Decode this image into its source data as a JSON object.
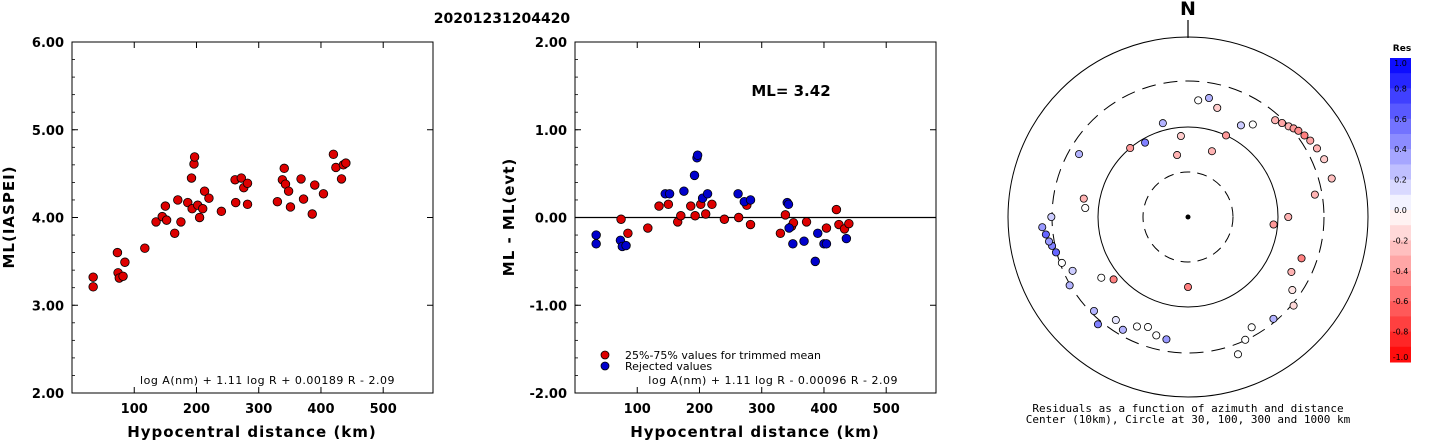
{
  "event_title": "20201231204420",
  "chart_data": [
    {
      "type": "scatter",
      "xlabel": "Hypocentral distance (km)",
      "ylabel": "ML(IASPEI)",
      "xlim": [
        0,
        580
      ],
      "ylim": [
        2.0,
        6.0
      ],
      "x_ticks": [
        "100",
        "200",
        "300",
        "400",
        "500"
      ],
      "y_ticks": [
        "2.00",
        "3.00",
        "4.00",
        "5.00",
        "6.00"
      ],
      "formula": "log A(nm) + 1.11 log R + 0.00189 R - 2.09",
      "series": [
        {
          "color": "#dd0000",
          "points": [
            [
              34,
              3.32
            ],
            [
              34,
              3.21
            ],
            [
              73,
              3.6
            ],
            [
              74,
              3.37
            ],
            [
              76,
              3.31
            ],
            [
              82,
              3.33
            ],
            [
              85,
              3.49
            ],
            [
              117,
              3.65
            ],
            [
              135,
              3.95
            ],
            [
              145,
              4.01
            ],
            [
              150,
              4.13
            ],
            [
              152,
              3.97
            ],
            [
              165,
              3.82
            ],
            [
              170,
              4.2
            ],
            [
              175,
              3.95
            ],
            [
              186,
              4.17
            ],
            [
              192,
              4.45
            ],
            [
              193,
              4.1
            ],
            [
              196,
              4.61
            ],
            [
              197,
              4.69
            ],
            [
              202,
              4.14
            ],
            [
              205,
              4.0
            ],
            [
              210,
              4.1
            ],
            [
              213,
              4.3
            ],
            [
              220,
              4.22
            ],
            [
              240,
              4.07
            ],
            [
              262,
              4.43
            ],
            [
              263,
              4.17
            ],
            [
              272,
              4.45
            ],
            [
              276,
              4.34
            ],
            [
              282,
              4.39
            ],
            [
              282,
              4.15
            ],
            [
              330,
              4.18
            ],
            [
              338,
              4.43
            ],
            [
              341,
              4.56
            ],
            [
              343,
              4.38
            ],
            [
              348,
              4.3
            ],
            [
              351,
              4.12
            ],
            [
              368,
              4.44
            ],
            [
              372,
              4.21
            ],
            [
              386,
              4.04
            ],
            [
              390,
              4.37
            ],
            [
              404,
              4.27
            ],
            [
              420,
              4.72
            ],
            [
              424,
              4.57
            ],
            [
              433,
              4.44
            ],
            [
              436,
              4.6
            ],
            [
              440,
              4.62
            ]
          ]
        }
      ]
    },
    {
      "type": "scatter",
      "xlabel": "Hypocentral distance (km)",
      "ylabel": "ML - ML(evt)",
      "xlim": [
        0,
        580
      ],
      "ylim": [
        -2.0,
        2.0
      ],
      "x_ticks": [
        "100",
        "200",
        "300",
        "400",
        "500"
      ],
      "y_ticks": [
        "-2.00",
        "-1.00",
        "0.00",
        "1.00",
        "2.00"
      ],
      "annotation": "ML= 3.42",
      "formula": "log A(nm) + 1.11 log R - 0.00096 R - 2.09",
      "legend": [
        "25%-75% values for trimmed mean",
        "Rejected values"
      ],
      "series": [
        {
          "name": "25%-75% values for trimmed mean",
          "color": "#dd0000",
          "points": [
            [
              74,
              -0.02
            ],
            [
              85,
              -0.18
            ],
            [
              117,
              -0.12
            ],
            [
              135,
              0.13
            ],
            [
              150,
              0.15
            ],
            [
              165,
              -0.05
            ],
            [
              170,
              0.02
            ],
            [
              186,
              0.13
            ],
            [
              193,
              0.02
            ],
            [
              202,
              0.15
            ],
            [
              210,
              0.04
            ],
            [
              220,
              0.15
            ],
            [
              240,
              -0.02
            ],
            [
              263,
              0.0
            ],
            [
              276,
              0.14
            ],
            [
              282,
              -0.08
            ],
            [
              330,
              -0.18
            ],
            [
              338,
              0.03
            ],
            [
              348,
              -0.1
            ],
            [
              351,
              -0.06
            ],
            [
              372,
              -0.05
            ],
            [
              404,
              -0.12
            ],
            [
              420,
              0.09
            ],
            [
              424,
              -0.08
            ],
            [
              433,
              -0.13
            ],
            [
              440,
              -0.07
            ]
          ]
        },
        {
          "name": "Rejected values",
          "color": "#0000cc",
          "points": [
            [
              34,
              -0.2
            ],
            [
              34,
              -0.3
            ],
            [
              73,
              -0.26
            ],
            [
              76,
              -0.33
            ],
            [
              82,
              -0.32
            ],
            [
              145,
              0.27
            ],
            [
              152,
              0.27
            ],
            [
              175,
              0.3
            ],
            [
              192,
              0.48
            ],
            [
              196,
              0.68
            ],
            [
              197,
              0.71
            ],
            [
              205,
              0.22
            ],
            [
              213,
              0.27
            ],
            [
              262,
              0.27
            ],
            [
              272,
              0.18
            ],
            [
              282,
              0.2
            ],
            [
              341,
              0.17
            ],
            [
              343,
              0.15
            ],
            [
              344,
              -0.12
            ],
            [
              350,
              -0.3
            ],
            [
              368,
              -0.27
            ],
            [
              386,
              -0.5
            ],
            [
              390,
              -0.18
            ],
            [
              400,
              -0.3
            ],
            [
              404,
              -0.3
            ],
            [
              436,
              -0.24
            ]
          ]
        }
      ]
    },
    {
      "type": "scatter",
      "subtype": "polar-residuals",
      "north_label": "N",
      "caption_line1": "Residuals as a function of azimuth and distance",
      "caption_line2": "Center (10km), Circle at 30, 100, 300 and 1000 km",
      "colorbar_title": "Res",
      "colorbar_ticks": [
        "1.0",
        "0.8",
        "0.6",
        "0.4",
        "0.2",
        "0.0",
        "-0.2",
        "-0.4",
        "-0.6",
        "-0.8",
        "-1.0"
      ],
      "colorbar_range": [
        -1.0,
        1.0
      ],
      "points_az_dist_res": [
        [
          42,
          280,
          -0.3
        ],
        [
          45,
          300,
          -0.35
        ],
        [
          48,
          320,
          -0.3
        ],
        [
          50,
          340,
          -0.4
        ],
        [
          52,
          360,
          -0.45
        ],
        [
          55,
          380,
          -0.5
        ],
        [
          58,
          400,
          -0.35
        ],
        [
          62,
          420,
          -0.3
        ],
        [
          67,
          440,
          -0.2
        ],
        [
          75,
          450,
          -0.25
        ],
        [
          80,
          270,
          -0.3
        ],
        [
          90,
          130,
          -0.3
        ],
        [
          95,
          90,
          -0.4
        ],
        [
          110,
          220,
          -0.5
        ],
        [
          118,
          200,
          -0.3
        ],
        [
          125,
          260,
          -0.1
        ],
        [
          130,
          340,
          -0.15
        ],
        [
          140,
          300,
          0.3
        ],
        [
          150,
          260,
          0.0
        ],
        [
          155,
          320,
          0.0
        ],
        [
          160,
          420,
          0.0
        ],
        [
          180,
          60,
          -0.5
        ],
        [
          190,
          240,
          0.4
        ],
        [
          195,
          230,
          0.0
        ],
        [
          200,
          200,
          0.0
        ],
        [
          205,
          220,
          0.0
        ],
        [
          210,
          280,
          0.3
        ],
        [
          215,
          250,
          0.1
        ],
        [
          220,
          360,
          0.5
        ],
        [
          225,
          300,
          0.3
        ],
        [
          230,
          120,
          -0.5
        ],
        [
          235,
          150,
          0.0
        ],
        [
          240,
          330,
          0.3
        ],
        [
          245,
          260,
          0.2
        ],
        [
          250,
          310,
          0.0
        ],
        [
          255,
          330,
          0.6
        ],
        [
          258,
          350,
          0.5
        ],
        [
          260,
          370,
          0.4
        ],
        [
          263,
          390,
          0.6
        ],
        [
          266,
          420,
          0.4
        ],
        [
          270,
          330,
          0.2
        ],
        [
          275,
          140,
          0.0
        ],
        [
          280,
          150,
          -0.3
        ],
        [
          300,
          250,
          0.3
        ],
        [
          320,
          100,
          -0.4
        ],
        [
          330,
          90,
          0.5
        ],
        [
          345,
          120,
          0.3
        ],
        [
          350,
          50,
          -0.3
        ],
        [
          355,
          80,
          -0.2
        ],
        [
          5,
          200,
          0.0
        ],
        [
          10,
          220,
          0.3
        ],
        [
          15,
          180,
          -0.2
        ],
        [
          20,
          60,
          -0.3
        ],
        [
          25,
          100,
          -0.4
        ],
        [
          30,
          150,
          0.2
        ],
        [
          35,
          180,
          0.0
        ]
      ]
    }
  ]
}
